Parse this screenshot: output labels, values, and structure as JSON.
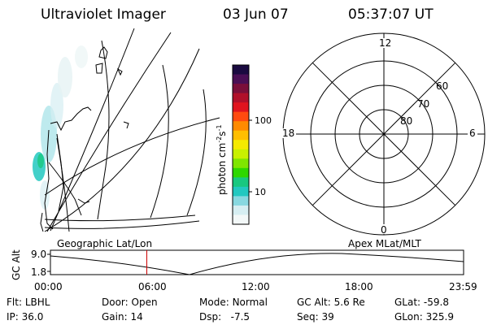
{
  "header": {
    "instrument": "Ultraviolet Imager",
    "date": "03 Jun 07",
    "time": "05:37:07 UT"
  },
  "colorbar": {
    "label": "photon cm",
    "label_exp1": "-2",
    "label_mid": "s",
    "label_exp2": "-1",
    "ticks": [
      "100",
      "10"
    ],
    "colors": [
      "#1a0a40",
      "#4a0f55",
      "#7a0f3a",
      "#b0102a",
      "#e0141e",
      "#ff4a10",
      "#ff8a00",
      "#ffbe00",
      "#f5ea00",
      "#c8f000",
      "#7fe600",
      "#2ed800",
      "#18c880",
      "#22c8c0",
      "#88d8e0",
      "#d6eef2",
      "#f3f8f8"
    ]
  },
  "polar": {
    "mlt_labels": {
      "top": "12",
      "left": "18",
      "right": "6",
      "bottom": "0"
    },
    "lat_labels": [
      "60",
      "70",
      "80"
    ]
  },
  "panel_labels": {
    "left": "Geographic Lat/Lon",
    "right": "Apex  MLat/MLT"
  },
  "altitude_plot": {
    "ylabel": "GC Alt",
    "ymax": "9.0",
    "ymin": "1.8",
    "x_ticks": [
      "00:00",
      "06:00",
      "12:00",
      "18:00",
      "23:59"
    ],
    "current_time_fraction": 0.2333,
    "marker_color": "#cc0000"
  },
  "status": {
    "row1": [
      {
        "label": "Flt:",
        "value": "LBHL"
      },
      {
        "label": "Door:",
        "value": "Open"
      },
      {
        "label": "Mode:",
        "value": "Normal"
      },
      {
        "label": "GC Alt:",
        "value": "5.6 Re"
      },
      {
        "label": "GLat:",
        "value": "-59.8"
      }
    ],
    "row2": [
      {
        "label": "IP:",
        "value": "36.0"
      },
      {
        "label": "Gain:",
        "value": "14"
      },
      {
        "label": "Dsp:",
        "value": "-7.5"
      },
      {
        "label": "Seq:",
        "value": "39"
      },
      {
        "label": "GLon:",
        "value": "325.9"
      }
    ]
  }
}
